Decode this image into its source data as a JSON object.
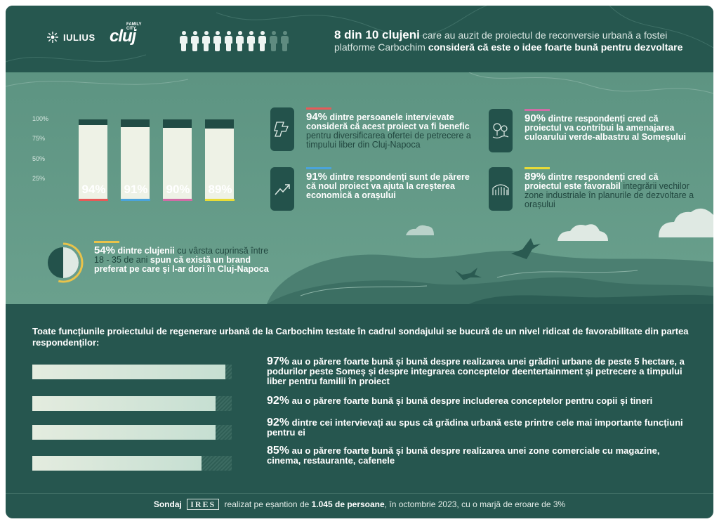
{
  "header": {
    "brand_iulius": "IULIUS",
    "brand_cluj": "cluj",
    "brand_cluj_small": "FAMILY CITY",
    "people_highlighted": 8,
    "people_total": 10,
    "headline": {
      "strong_1": "8 din 10 clujeni",
      "normal_1": " care au auzit de proiectul de reconversie urbană a fostei platforme Carbochim ",
      "strong_2": "consideră că este o idee foarte bună pentru dezvoltare"
    }
  },
  "bar_chart": {
    "yticks": [
      "100%",
      "75%",
      "50%",
      "25%"
    ],
    "bars": [
      {
        "label": "94%",
        "value": 94,
        "color": "#e85a58"
      },
      {
        "label": "91%",
        "value": 91,
        "color": "#4aa4dc"
      },
      {
        "label": "90%",
        "value": 90,
        "color": "#d16ca6"
      },
      {
        "label": "89%",
        "value": 89,
        "color": "#e9dc36"
      }
    ]
  },
  "stats": [
    {
      "pct": "94%",
      "bold": " dintre persoanele intervievate consideră că acest proiect va fi benefic",
      "normal": " pentru diversificarea ofertei de petrecere a timpului liber din Cluj-Napoca",
      "rule_color": "#e85a58",
      "icon": "map-icon"
    },
    {
      "pct": "91%",
      "bold": " dintre respondenți sunt de părere că noul proiect va ajuta la creșterea economică a orașului",
      "normal": "",
      "rule_color": "#4aa4dc",
      "icon": "growth-chart-icon"
    },
    {
      "pct": "90%",
      "bold": " dintre respondenți cred că proiectul va contribui la amenajarea culoarului verde-albastru al Someșului",
      "normal": "",
      "rule_color": "#d16ca6",
      "icon": "trees-river-icon"
    },
    {
      "pct": "89%",
      "bold": " dintre respondenți cred că proiectul este favorabil",
      "normal": " integrării vechilor zone industriale în planurile de dezvoltare a orașului",
      "rule_color": "#e9dc36",
      "icon": "industrial-hall-icon"
    }
  ],
  "young": {
    "pct": "54%",
    "bold_1": " dintre clujenii",
    "normal_1": " cu vârsta cuprinsă între 18 - 35 de ani ",
    "bold_2": "spun că există un brand preferat pe care și l-ar dori în Cluj-Napoca",
    "arc_value": 0.54,
    "arc_color": "#e9c34a"
  },
  "intro": "Toate funcțiunile proiectului de regenerare urbană de la Carbochim testate în cadrul sondajului se bucură de un nivel ridicat de favorabilitate din partea respondenților:",
  "favorability": [
    {
      "value": 97,
      "pct": "97%",
      "text": " au o părere foarte bună și bună despre realizarea unei grădini urbane de peste 5 hectare, a podurilor peste Someș și despre integrarea conceptelor deentertainment și petrecere a timpului liber pentru familii în proiect"
    },
    {
      "value": 92,
      "pct": "92%",
      "text": " au o părere foarte bună și bună despre includerea conceptelor pentru copii și tineri"
    },
    {
      "value": 92,
      "pct": "92%",
      "text": " dintre cei intervievați au spus că grădina urbană este printre cele mai importante funcțiuni pentru ei"
    },
    {
      "value": 85,
      "pct": "85%",
      "text": " au o părere foarte bună și bună despre realizarea unei zone comerciale cu magazine, cinema, restaurante, cafenele"
    }
  ],
  "footer": {
    "sondaj": "Sondaj",
    "ires": "IRES",
    "text_1": " realizat pe eșantion de ",
    "bold": "1.045 de persoane",
    "text_2": ", în octombrie 2023, cu o marjă de eroare de 3%"
  }
}
